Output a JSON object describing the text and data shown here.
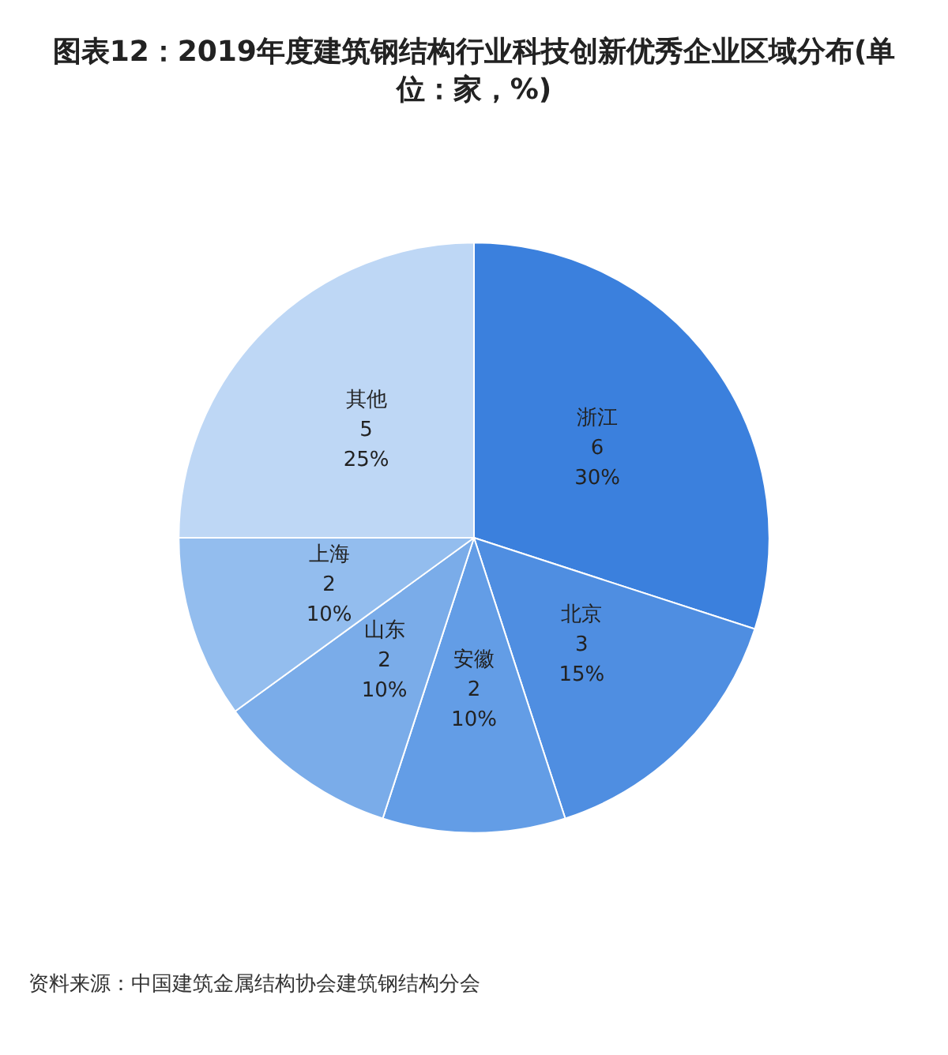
{
  "chart_data": {
    "type": "pie",
    "title": "图表12：2019年度建筑钢结构行业科技创新优秀企业区域分布(单位：家，%)",
    "categories": [
      "浙江",
      "北京",
      "安徽",
      "山东",
      "上海",
      "其他"
    ],
    "values": [
      30,
      15,
      10,
      10,
      10,
      25
    ],
    "value_labels": [
      "6\n30%",
      "3\n15%",
      "2\n10%",
      "2\n10%",
      "2\n10%",
      "5\n25%"
    ],
    "colors": [
      "#3b80dd",
      "#4f8ee1",
      "#639de6",
      "#7aace9",
      "#93bdee",
      "#bed7f5"
    ],
    "legend": false,
    "annotations": [
      "资料来源：中国建筑金属结构协会建筑钢结构分会"
    ]
  }
}
